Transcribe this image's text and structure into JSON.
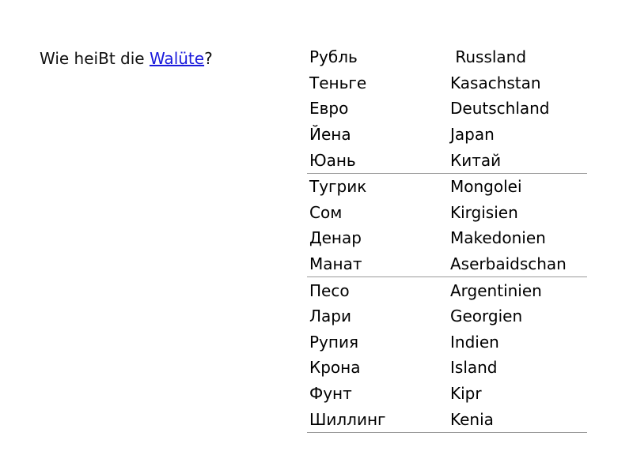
{
  "question": {
    "prefix": "Wie heiBt die ",
    "link": "Walüte",
    "suffix": "?"
  },
  "table": {
    "rows": [
      {
        "currency": "Рубль",
        "country": " Russland"
      },
      {
        "currency": "Теньге",
        "country": "Kasachstan"
      },
      {
        "currency": "Евро",
        "country": "Deutschland"
      },
      {
        "currency": "Йена",
        "country": "Japan"
      },
      {
        "currency": "Юань",
        "country": "Китай"
      },
      {
        "currency": "Тугрик",
        "country": "Mongolei"
      },
      {
        "currency": "Сом",
        "country": "Kirgisien"
      },
      {
        "currency": "Денар",
        "country": "Makedonien"
      },
      {
        "currency": "Манат",
        "country": "Aserbaidschan"
      },
      {
        "currency": "Песо",
        "country": "Argentinien"
      },
      {
        "currency": "Лари",
        "country": "Georgien"
      },
      {
        "currency": "Рупия",
        "country": "Indien"
      },
      {
        "currency": "Крона",
        "country": "Island"
      },
      {
        "currency": "Фунт",
        "country": "Kipr"
      },
      {
        "currency": "Шиллинг",
        "country": "Kenia"
      }
    ]
  },
  "colors": {
    "link": "#1a1adc",
    "rule": "#999999"
  }
}
